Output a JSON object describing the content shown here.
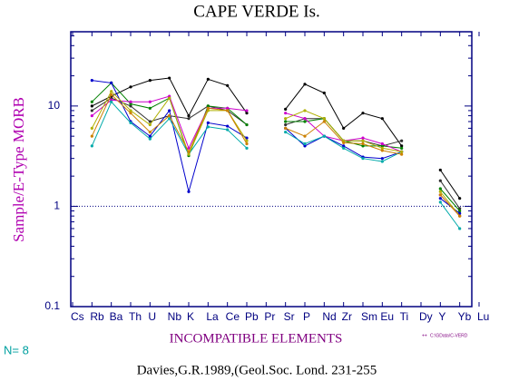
{
  "chart_data": {
    "type": "line",
    "title": "CAPE VERDE Is.",
    "y_label": "Sample/E-Type MORB",
    "x_label": "INCOMPATIBLE ELEMENTS",
    "count_label": "N= 8",
    "file_label": "C:\\GData\\C-VERD",
    "citation": "Davies,G.R.1989,(Geol.Soc. Lond. 231-255",
    "log_scale": true,
    "ylim": [
      0.1,
      55
    ],
    "yticks": [
      0.1,
      1,
      10
    ],
    "reference_line": 1,
    "categories": [
      "Cs",
      "Rb",
      "Ba",
      "Th",
      "U",
      "Nb",
      "K",
      "La",
      "Ce",
      "Pb",
      "Pr",
      "Sr",
      "P",
      "Nd",
      "Zr",
      "Sm",
      "Eu",
      "Ti",
      "Dy",
      "Y",
      "Yb",
      "Lu"
    ],
    "series": [
      {
        "color": "#000000",
        "values": [
          null,
          10,
          12.5,
          15.5,
          18,
          19,
          8,
          18.5,
          16,
          8.5,
          null,
          9.3,
          16.5,
          13.5,
          6,
          8.5,
          7.5,
          4,
          null,
          2.3,
          1.2,
          null
        ]
      },
      {
        "color": "#303030",
        "values": [
          null,
          9,
          12,
          10,
          7,
          8,
          7.5,
          10,
          9,
          6.5,
          null,
          6.5,
          7.5,
          7.5,
          4.5,
          4.5,
          4,
          4.5,
          null,
          1.8,
          0.95,
          null
        ]
      },
      {
        "color": "#008000",
        "values": [
          null,
          11,
          17,
          10.5,
          9.5,
          12,
          3.2,
          10,
          9.5,
          6.5,
          null,
          7,
          7,
          7.5,
          4.5,
          4,
          4,
          3.8,
          null,
          1.5,
          0.9,
          null
        ]
      },
      {
        "color": "#cc00cc",
        "values": [
          null,
          8,
          11.5,
          11,
          11,
          12.5,
          3.8,
          9.5,
          9.5,
          9,
          null,
          8.5,
          7.5,
          5,
          4.5,
          4.8,
          4.2,
          3.5,
          null,
          1.3,
          0.8,
          null
        ]
      },
      {
        "color": "#0000cc",
        "values": [
          null,
          18,
          17,
          7,
          5,
          9,
          1.4,
          6.8,
          6.3,
          4.8,
          null,
          6,
          4,
          5,
          4,
          3.1,
          3,
          3.5,
          null,
          1.2,
          0.85,
          null
        ]
      },
      {
        "color": "#00aaaa",
        "values": [
          null,
          4,
          11,
          6.8,
          4.7,
          7.5,
          3.3,
          6.2,
          5.8,
          3.8,
          null,
          5.5,
          4.2,
          5,
          3.8,
          3,
          2.8,
          3.5,
          null,
          1.1,
          0.6,
          null
        ]
      },
      {
        "color": "#b0b000",
        "values": [
          null,
          6,
          14,
          9,
          6.5,
          12,
          3.3,
          9,
          9,
          4.5,
          null,
          7.5,
          9,
          7.5,
          4.5,
          4.5,
          3.8,
          3.5,
          null,
          1.4,
          0.8,
          null
        ]
      },
      {
        "color": "#cc8000",
        "values": [
          null,
          5,
          13,
          8.5,
          5.5,
          8,
          3.5,
          9.5,
          9,
          4.2,
          null,
          6,
          5,
          7,
          4.3,
          4.2,
          3.6,
          3.3,
          null,
          1.3,
          0.8,
          null
        ]
      }
    ]
  }
}
